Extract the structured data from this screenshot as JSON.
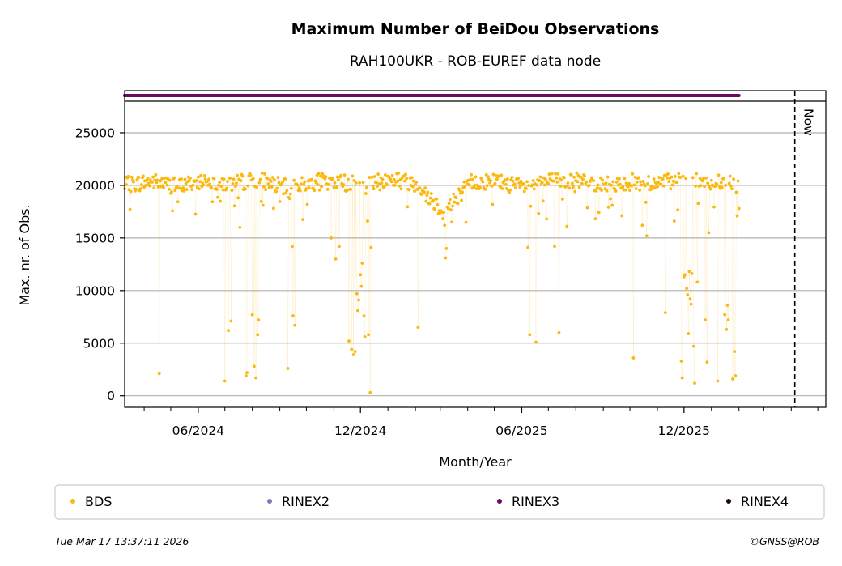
{
  "chart_data": {
    "type": "scatter",
    "title": "Maximum Number of BeiDou Observations",
    "subtitle": "RAH100UKR - ROB-EUREF data node",
    "xlabel": "Month/Year",
    "ylabel": "Max. nr. of Obs.",
    "x_ticks": [
      "06/2024",
      "12/2024",
      "06/2025",
      "12/2025"
    ],
    "y_ticks": [
      0,
      5000,
      10000,
      15000,
      20000,
      25000
    ],
    "ylim": [
      -1100,
      28000
    ],
    "xlim": [
      "2024-03-10",
      "2026-05-10"
    ],
    "grid": "horizontal",
    "now_label": "Now",
    "now_date": "2026-04-05",
    "legend": [
      {
        "label": "BDS",
        "color": "#fbb80e"
      },
      {
        "label": "RINEX2",
        "color": "#7b78b8"
      },
      {
        "label": "RINEX3",
        "color": "#6a0a62"
      },
      {
        "label": "RINEX4",
        "color": "#1c0414"
      }
    ],
    "legend_position": "bottom",
    "rinex3_range": [
      "2024-03-10",
      "2026-02-01"
    ],
    "series": [
      {
        "name": "BDS",
        "color": "#fbb80e",
        "start_date": "2024-03-10",
        "end_date": "2026-02-01",
        "baseline": [
          [
            0,
            20000
          ],
          [
            30,
            20400
          ],
          [
            60,
            19900
          ],
          [
            90,
            20500
          ],
          [
            120,
            20100
          ],
          [
            150,
            20600
          ],
          [
            180,
            19800
          ],
          [
            210,
            20300
          ],
          [
            240,
            20400
          ],
          [
            270,
            19900
          ],
          [
            300,
            20600
          ],
          [
            330,
            20200
          ],
          [
            360,
            17500
          ],
          [
            390,
            20300
          ],
          [
            420,
            20400
          ],
          [
            450,
            19800
          ],
          [
            480,
            20500
          ],
          [
            510,
            20400
          ],
          [
            540,
            20100
          ],
          [
            570,
            20300
          ],
          [
            600,
            20200
          ],
          [
            630,
            20400
          ],
          [
            660,
            20300
          ],
          [
            692,
            20100
          ]
        ],
        "outliers": [
          [
            "2024-04-18",
            2100
          ],
          [
            "2024-07-01",
            1400
          ],
          [
            "2024-07-05",
            6200
          ],
          [
            "2024-07-08",
            7100
          ],
          [
            "2024-07-18",
            16000
          ],
          [
            "2024-07-25",
            1900
          ],
          [
            "2024-07-26",
            2200
          ],
          [
            "2024-08-01",
            7700
          ],
          [
            "2024-08-03",
            2800
          ],
          [
            "2024-08-05",
            1700
          ],
          [
            "2024-08-07",
            5800
          ],
          [
            "2024-08-08",
            7200
          ],
          [
            "2024-09-10",
            2600
          ],
          [
            "2024-09-15",
            14200
          ],
          [
            "2024-09-16",
            7600
          ],
          [
            "2024-09-18",
            6700
          ],
          [
            "2024-10-29",
            15000
          ],
          [
            "2024-11-03",
            13000
          ],
          [
            "2024-11-07",
            14200
          ],
          [
            "2024-11-18",
            5200
          ],
          [
            "2024-11-21",
            4400
          ],
          [
            "2024-11-23",
            3900
          ],
          [
            "2024-11-25",
            4200
          ],
          [
            "2024-11-27",
            9700
          ],
          [
            "2024-11-28",
            8100
          ],
          [
            "2024-11-29",
            9100
          ],
          [
            "2024-12-01",
            11500
          ],
          [
            "2024-12-02",
            10400
          ],
          [
            "2024-12-03",
            12600
          ],
          [
            "2024-12-05",
            7600
          ],
          [
            "2024-12-06",
            5600
          ],
          [
            "2024-12-09",
            16600
          ],
          [
            "2024-12-10",
            5800
          ],
          [
            "2024-12-12",
            300
          ],
          [
            "2024-12-13",
            14100
          ],
          [
            "2025-02-04",
            6500
          ],
          [
            "2025-03-06",
            16200
          ],
          [
            "2025-03-07",
            13100
          ],
          [
            "2025-03-08",
            14000
          ],
          [
            "2025-03-14",
            16500
          ],
          [
            "2025-06-08",
            14100
          ],
          [
            "2025-06-10",
            5800
          ],
          [
            "2025-06-17",
            5100
          ],
          [
            "2025-07-08",
            14200
          ],
          [
            "2025-07-13",
            6000
          ],
          [
            "2025-07-22",
            16100
          ],
          [
            "2025-10-05",
            3600
          ],
          [
            "2025-10-15",
            16200
          ],
          [
            "2025-10-20",
            15200
          ],
          [
            "2025-11-10",
            7900
          ],
          [
            "2025-11-20",
            16600
          ],
          [
            "2025-11-28",
            3300
          ],
          [
            "2025-11-29",
            1700
          ],
          [
            "2025-12-01",
            11300
          ],
          [
            "2025-12-02",
            11500
          ],
          [
            "2025-12-04",
            10200
          ],
          [
            "2025-12-05",
            9600
          ],
          [
            "2025-12-06",
            5900
          ],
          [
            "2025-12-07",
            11800
          ],
          [
            "2025-12-08",
            9200
          ],
          [
            "2025-12-09",
            8700
          ],
          [
            "2025-12-10",
            11600
          ],
          [
            "2025-12-12",
            4700
          ],
          [
            "2025-12-13",
            1200
          ],
          [
            "2025-12-16",
            10800
          ],
          [
            "2025-12-25",
            7200
          ],
          [
            "2025-12-27",
            3200
          ],
          [
            "2025-12-29",
            15500
          ],
          [
            "2026-01-08",
            1400
          ],
          [
            "2026-01-16",
            7700
          ],
          [
            "2026-01-18",
            6300
          ],
          [
            "2026-01-19",
            8600
          ],
          [
            "2026-01-20",
            7200
          ],
          [
            "2026-01-25",
            1600
          ],
          [
            "2026-01-27",
            4200
          ],
          [
            "2026-01-28",
            1900
          ]
        ]
      }
    ]
  },
  "footer": {
    "timestamp": "Tue Mar 17 13:37:11 2026",
    "credit": "©GNSS@ROB"
  }
}
